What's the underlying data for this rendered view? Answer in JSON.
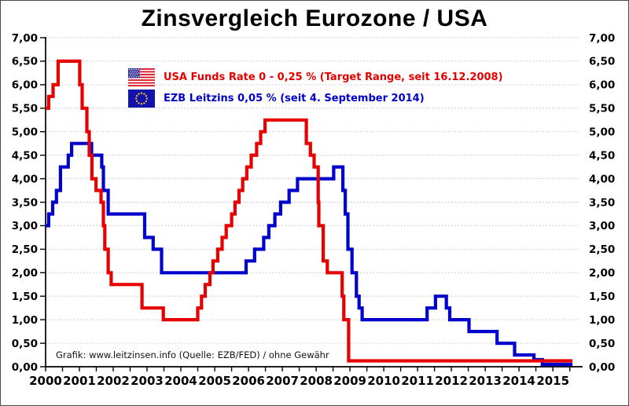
{
  "title": "Zinsvergleich Eurozone / USA",
  "legend": {
    "items": [
      {
        "icon": "usa-flag-icon",
        "label": "USA Funds Rate 0 - 0,25 % (Target Range, seit 16.12.2008)",
        "color": "#e60000"
      },
      {
        "icon": "eu-flag-icon",
        "label": "EZB Leitzins 0,05 %  (seit 4. September 2014)",
        "color": "#0000cc"
      }
    ]
  },
  "footer": {
    "credit": "Grafik:  www.leitzinsen.info (Quelle:  EZB/FED)  / ohne Gewähr"
  },
  "chart_data": {
    "type": "line",
    "interpolation": "step-after",
    "title": "Zinsvergleich Eurozone / USA",
    "xlabel": "",
    "ylabel": "",
    "x_range": [
      2000,
      2015.88
    ],
    "x_data_end": 2015.58,
    "y_range": [
      0,
      7
    ],
    "y_ticks": [
      0,
      0.5,
      1,
      1.5,
      2,
      2.5,
      3,
      3.5,
      4,
      4.5,
      5,
      5.5,
      6,
      6.5,
      7
    ],
    "y_tick_labels": [
      "0,00",
      "0,50",
      "1,00",
      "1,50",
      "2,00",
      "2,50",
      "3,00",
      "3,50",
      "4,00",
      "4,50",
      "5,00",
      "5,50",
      "6,00",
      "6,50",
      "7,00"
    ],
    "x_ticks": [
      2000,
      2001,
      2002,
      2003,
      2004,
      2005,
      2006,
      2007,
      2008,
      2009,
      2010,
      2011,
      2012,
      2013,
      2014,
      2015
    ],
    "x_tick_labels": [
      "2000",
      "2001",
      "2002",
      "2003",
      "2004",
      "2005",
      "2006",
      "2007",
      "2008",
      "2009",
      "2010",
      "2011",
      "2012",
      "2013",
      "2014",
      "2015"
    ],
    "x_minor_tick_step": 0.5,
    "grid": {
      "horizontal": true,
      "vertical": false,
      "style": "dotted",
      "color": "#c5c5c5"
    },
    "legend_position": "top-left-inside",
    "series": [
      {
        "name": "EZB Leitzins",
        "color": "#0000cc",
        "points": [
          [
            2000.0,
            3.0
          ],
          [
            2000.09,
            3.25
          ],
          [
            2000.21,
            3.5
          ],
          [
            2000.32,
            3.75
          ],
          [
            2000.44,
            4.25
          ],
          [
            2000.67,
            4.5
          ],
          [
            2000.77,
            4.75
          ],
          [
            2001.36,
            4.5
          ],
          [
            2001.66,
            4.25
          ],
          [
            2001.71,
            3.75
          ],
          [
            2001.85,
            3.25
          ],
          [
            2002.93,
            2.75
          ],
          [
            2003.18,
            2.5
          ],
          [
            2003.43,
            2.0
          ],
          [
            2005.93,
            2.25
          ],
          [
            2006.18,
            2.5
          ],
          [
            2006.45,
            2.75
          ],
          [
            2006.6,
            3.0
          ],
          [
            2006.78,
            3.25
          ],
          [
            2006.95,
            3.5
          ],
          [
            2007.2,
            3.75
          ],
          [
            2007.45,
            4.0
          ],
          [
            2008.52,
            4.25
          ],
          [
            2008.79,
            3.75
          ],
          [
            2008.86,
            3.25
          ],
          [
            2008.94,
            2.5
          ],
          [
            2009.06,
            2.0
          ],
          [
            2009.19,
            1.5
          ],
          [
            2009.27,
            1.25
          ],
          [
            2009.36,
            1.0
          ],
          [
            2011.28,
            1.25
          ],
          [
            2011.53,
            1.5
          ],
          [
            2011.85,
            1.25
          ],
          [
            2011.95,
            1.0
          ],
          [
            2012.52,
            0.75
          ],
          [
            2013.35,
            0.5
          ],
          [
            2013.87,
            0.25
          ],
          [
            2014.44,
            0.15
          ],
          [
            2014.69,
            0.05
          ]
        ]
      },
      {
        "name": "USA Funds Rate",
        "color": "#e60000",
        "points": [
          [
            2000.0,
            5.5
          ],
          [
            2000.09,
            5.75
          ],
          [
            2000.22,
            6.0
          ],
          [
            2000.37,
            6.5
          ],
          [
            2001.01,
            6.0
          ],
          [
            2001.08,
            5.5
          ],
          [
            2001.22,
            5.0
          ],
          [
            2001.29,
            4.5
          ],
          [
            2001.37,
            4.0
          ],
          [
            2001.49,
            3.75
          ],
          [
            2001.64,
            3.5
          ],
          [
            2001.71,
            3.0
          ],
          [
            2001.75,
            2.5
          ],
          [
            2001.85,
            2.0
          ],
          [
            2001.94,
            1.75
          ],
          [
            2002.85,
            1.25
          ],
          [
            2003.48,
            1.0
          ],
          [
            2004.5,
            1.25
          ],
          [
            2004.61,
            1.5
          ],
          [
            2004.72,
            1.75
          ],
          [
            2004.86,
            2.0
          ],
          [
            2004.95,
            2.25
          ],
          [
            2005.09,
            2.5
          ],
          [
            2005.22,
            2.75
          ],
          [
            2005.34,
            3.0
          ],
          [
            2005.5,
            3.25
          ],
          [
            2005.6,
            3.5
          ],
          [
            2005.72,
            3.75
          ],
          [
            2005.83,
            4.0
          ],
          [
            2005.95,
            4.25
          ],
          [
            2006.08,
            4.5
          ],
          [
            2006.24,
            4.75
          ],
          [
            2006.36,
            5.0
          ],
          [
            2006.49,
            5.25
          ],
          [
            2007.71,
            4.75
          ],
          [
            2007.83,
            4.5
          ],
          [
            2007.94,
            4.25
          ],
          [
            2008.06,
            3.5
          ],
          [
            2008.08,
            3.0
          ],
          [
            2008.21,
            2.25
          ],
          [
            2008.33,
            2.0
          ],
          [
            2008.77,
            1.5
          ],
          [
            2008.82,
            1.0
          ],
          [
            2008.96,
            0.125
          ]
        ]
      }
    ]
  }
}
